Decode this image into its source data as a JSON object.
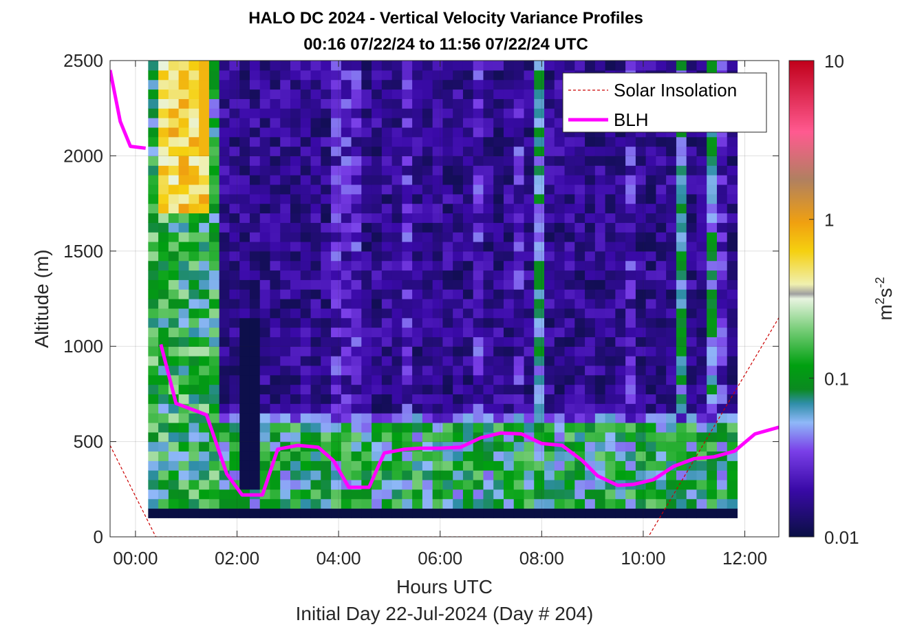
{
  "chart_data": {
    "type": "heatmap",
    "title": "HALO DC 2024 - Vertical Velocity Variance Profiles",
    "subtitle": "00:16 07/22/24 to 11:56 07/22/24  UTC",
    "xlabel": "Hours UTC",
    "xlabel2": "Initial Day 22-Jul-2024 (Day # 204)",
    "ylabel": "Altitude (m)",
    "xlim": [
      -0.5,
      12.67
    ],
    "ylim": [
      0,
      2500
    ],
    "x_ticks": [
      0,
      2,
      4,
      6,
      8,
      10,
      12
    ],
    "x_tick_labels": [
      "00:00",
      "02:00",
      "04:00",
      "06:00",
      "08:00",
      "10:00",
      "12:00"
    ],
    "y_ticks": [
      0,
      500,
      1000,
      1500,
      2000,
      2500
    ],
    "y_tick_labels": [
      "0",
      "500",
      "1000",
      "1500",
      "2000",
      "2500"
    ],
    "colorbar": {
      "label": "m²s⁻²",
      "label_base": "m",
      "label_sup1": "2",
      "label_mid": "s",
      "label_sup2": "-2",
      "scale": "log",
      "range": [
        0.01,
        10
      ],
      "ticks": [
        0.01,
        0.1,
        1,
        10
      ],
      "tick_labels": [
        "0.01",
        "0.1",
        "1",
        "10"
      ]
    },
    "grid": true,
    "legend": {
      "placement": "top-right",
      "entries": [
        {
          "label": "Solar Insolation",
          "color": "#cc0000",
          "style": "dashed"
        },
        {
          "label": "BLH",
          "color": "#ff00ff",
          "style": "solid"
        }
      ]
    },
    "heatmap": {
      "time_start": 0.25,
      "time_end": 11.93,
      "time_step": 0.2,
      "alt_start": 100,
      "alt_end": 2500,
      "alt_step": 50,
      "description_levels": "log10 variance per cell"
    },
    "series": [
      {
        "name": "BLH",
        "x": [
          -0.5,
          -0.3,
          -0.1,
          0.2,
          0.5,
          0.8,
          1.1,
          1.4,
          1.8,
          2.1,
          2.5,
          2.8,
          3.2,
          3.6,
          3.9,
          4.2,
          4.6,
          4.9,
          5.3,
          5.6,
          6.0,
          6.4,
          6.8,
          7.2,
          7.6,
          8.0,
          8.4,
          8.8,
          9.1,
          9.5,
          9.8,
          10.2,
          10.6,
          11.0,
          11.4,
          11.8,
          12.2,
          12.67
        ],
        "y": [
          2450,
          2180,
          2050,
          2040,
          1010,
          700,
          670,
          640,
          330,
          220,
          220,
          460,
          480,
          470,
          400,
          260,
          260,
          440,
          460,
          465,
          465,
          470,
          520,
          545,
          540,
          490,
          480,
          400,
          320,
          270,
          275,
          300,
          370,
          410,
          420,
          450,
          540,
          575
        ]
      },
      {
        "name": "Solar Insolation",
        "x": [
          -0.5,
          0.4,
          10.1,
          12.67
        ],
        "y": [
          480,
          0,
          0,
          1150
        ]
      }
    ]
  }
}
